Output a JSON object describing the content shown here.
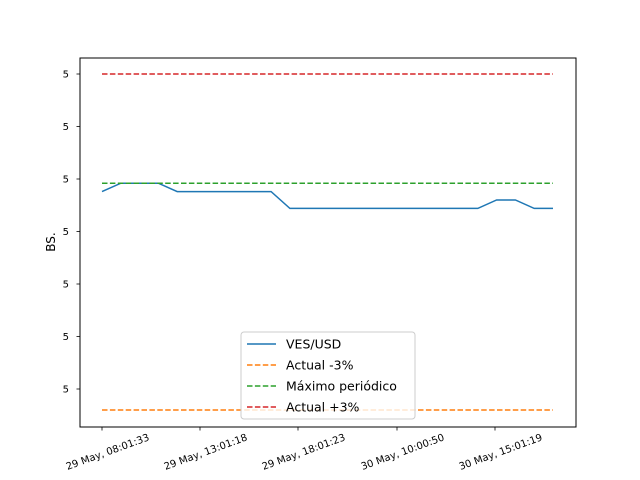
{
  "chart_data": {
    "type": "line",
    "title": "",
    "xlabel": "",
    "ylabel": "BS.",
    "x_ticks": [
      "29 May, 08:01:33",
      "29 May, 13:01:18",
      "29 May, 18:01:23",
      "30 May, 10:00:50",
      "30 May, 15:01:19"
    ],
    "y_tick_labels": [
      "5",
      "5",
      "5",
      "5",
      "5",
      "5",
      "5"
    ],
    "grid": false,
    "legend_position": "lower center",
    "series": [
      {
        "name": "VES/USD",
        "color": "#1f77b4",
        "style": "solid",
        "values": [
          5.0,
          5.2,
          5.2,
          5.2,
          5.0,
          5.0,
          5.0,
          5.0,
          5.0,
          5.0,
          4.6,
          4.6,
          4.6,
          4.6,
          4.6,
          4.6,
          4.6,
          4.6,
          4.6,
          4.6,
          4.6,
          4.8,
          4.8,
          4.6,
          4.6
        ]
      },
      {
        "name": "Actual -3%",
        "color": "#ff7f0e",
        "style": "dashed",
        "values": [
          -0.2,
          -0.2
        ]
      },
      {
        "name": "Máximo periódico",
        "color": "#2ca02c",
        "style": "dashed",
        "values": [
          5.2,
          5.2
        ]
      },
      {
        "name": "Actual +3%",
        "color": "#d62728",
        "style": "dashed",
        "values": [
          7.8,
          7.8
        ]
      }
    ]
  }
}
